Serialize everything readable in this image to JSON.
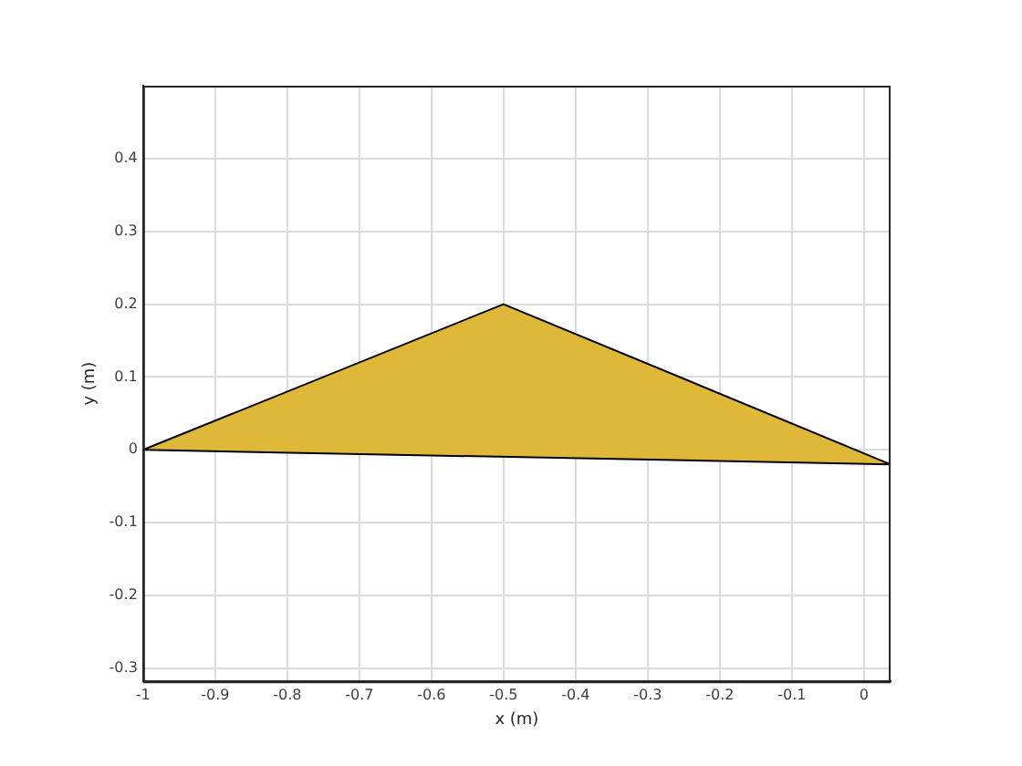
{
  "chart_data": {
    "type": "area",
    "xlabel": "x (m)",
    "ylabel": "y (m)",
    "series": [
      {
        "color": "#dfb83a",
        "x": [
          -1,
          -0.5,
          0.037,
          -1
        ],
        "values": [
          0,
          0.2,
          -0.02,
          0
        ]
      }
    ],
    "xlim": [
      -1,
      0.037
    ],
    "xticks": [
      -1,
      -0.9,
      -0.8,
      -0.7,
      -0.6,
      -0.5,
      -0.4,
      -0.3,
      -0.2,
      -0.1,
      0
    ],
    "ylim": [
      -0.318,
      0.5
    ],
    "yticks": [
      -0.3,
      -0.2,
      -0.1,
      0,
      0.1,
      0.2,
      0.3,
      0.4
    ],
    "grid": true,
    "legend": false
  }
}
